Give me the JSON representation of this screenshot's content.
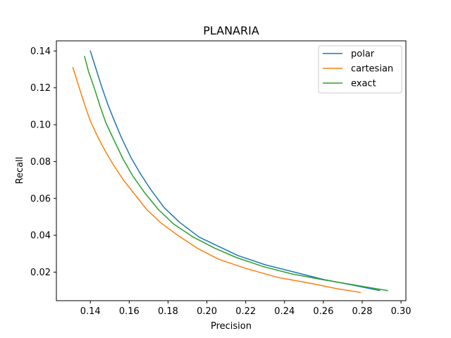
{
  "chart_data": {
    "type": "line",
    "title": "PLANARIA",
    "xlabel": "Precision",
    "ylabel": "Recall",
    "xlim": [
      0.1225,
      0.3025
    ],
    "ylim": [
      0.0045,
      0.1455
    ],
    "xticks": [
      0.14,
      0.16,
      0.18,
      0.2,
      0.22,
      0.24,
      0.26,
      0.28,
      0.3
    ],
    "xtick_labels": [
      "0.14",
      "0.16",
      "0.18",
      "0.20",
      "0.22",
      "0.24",
      "0.26",
      "0.28",
      "0.30"
    ],
    "yticks": [
      0.02,
      0.04,
      0.06,
      0.08,
      0.1,
      0.12,
      0.14
    ],
    "ytick_labels": [
      "0.02",
      "0.04",
      "0.06",
      "0.08",
      "0.10",
      "0.12",
      "0.14"
    ],
    "grid": false,
    "legend_position": "top-right",
    "series": [
      {
        "name": "polar",
        "color": "#1f77b4",
        "x": [
          0.14,
          0.143,
          0.146,
          0.149,
          0.152,
          0.156,
          0.161,
          0.166,
          0.171,
          0.178,
          0.186,
          0.196,
          0.206,
          0.216,
          0.23,
          0.245,
          0.26,
          0.275,
          0.289
        ],
        "y": [
          0.14,
          0.13,
          0.12,
          0.111,
          0.103,
          0.093,
          0.082,
          0.073,
          0.065,
          0.055,
          0.047,
          0.039,
          0.034,
          0.029,
          0.024,
          0.02,
          0.016,
          0.013,
          0.01
        ]
      },
      {
        "name": "cartesian",
        "color": "#ff7f0e",
        "x": [
          0.131,
          0.134,
          0.137,
          0.14,
          0.144,
          0.148,
          0.152,
          0.157,
          0.163,
          0.169,
          0.176,
          0.185,
          0.195,
          0.206,
          0.22,
          0.237,
          0.253,
          0.267,
          0.279
        ],
        "y": [
          0.131,
          0.121,
          0.111,
          0.102,
          0.093,
          0.085,
          0.078,
          0.07,
          0.062,
          0.054,
          0.047,
          0.04,
          0.033,
          0.027,
          0.022,
          0.017,
          0.014,
          0.011,
          0.009
        ]
      },
      {
        "name": "exact",
        "color": "#2ca02c",
        "x": [
          0.137,
          0.139,
          0.142,
          0.145,
          0.148,
          0.152,
          0.157,
          0.162,
          0.168,
          0.175,
          0.183,
          0.193,
          0.204,
          0.215,
          0.229,
          0.244,
          0.259,
          0.276,
          0.293
        ],
        "y": [
          0.137,
          0.129,
          0.12,
          0.11,
          0.101,
          0.092,
          0.081,
          0.072,
          0.063,
          0.054,
          0.046,
          0.039,
          0.033,
          0.028,
          0.023,
          0.019,
          0.016,
          0.013,
          0.01
        ]
      }
    ]
  }
}
